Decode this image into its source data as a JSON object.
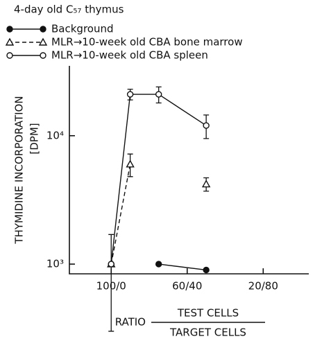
{
  "chart_data": {
    "type": "line",
    "title": "4-day old C₅₇ thymus",
    "ylabel": "THYMIDINE INCORPORATION",
    "yunit": "[DPM]",
    "xlabel": "RATIO",
    "xlabel_numerator": "TEST CELLS",
    "xlabel_denominator": "TARGET CELLS",
    "x": [
      100,
      90,
      75,
      50
    ],
    "xlim": [
      122,
      -4
    ],
    "xticks": [
      {
        "value": 100,
        "label": "100/0"
      },
      {
        "value": 60,
        "label": "60/40"
      },
      {
        "value": 20,
        "label": "20/80"
      }
    ],
    "ylim": [
      840,
      35000
    ],
    "yticks": [
      {
        "value": 1000,
        "label": "10³"
      },
      {
        "value": 10000,
        "label": "10⁴"
      }
    ],
    "log_y": true,
    "series": [
      {
        "name": "Background",
        "color": "#111111",
        "marker": "filled-circle",
        "dash": "solid",
        "values": [
          1000,
          null,
          1000,
          900
        ],
        "errors": [
          null,
          null,
          null,
          null
        ]
      },
      {
        "name": "MLR→10-week old CBA bone marrow",
        "color": "#111111",
        "marker": "triangle",
        "dash": "dashed",
        "values": [
          1000,
          6000,
          null,
          4200
        ],
        "errors": [
          700,
          1200,
          null,
          500
        ]
      },
      {
        "name": "MLR→10-week old CBA spleen",
        "color": "#111111",
        "marker": "open-circle",
        "dash": "solid",
        "values": [
          1000,
          21000,
          21000,
          12000
        ],
        "errors": [
          null,
          2000,
          3000,
          2500
        ]
      }
    ]
  }
}
